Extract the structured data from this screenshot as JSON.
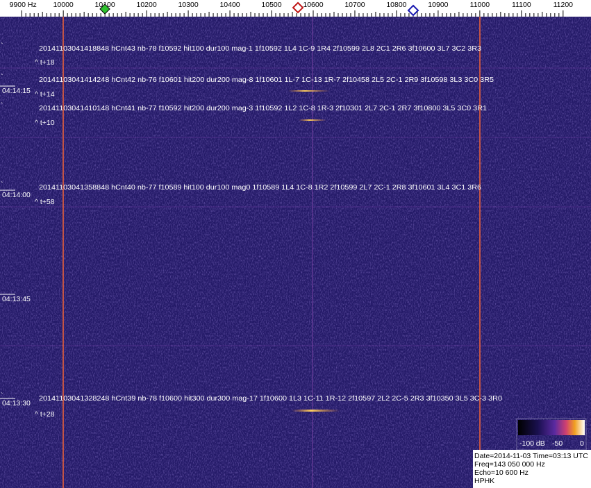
{
  "frequency_axis": {
    "xlim": [
      9848,
      11267
    ],
    "ticks": [
      {
        "value": 9900,
        "label": "9900 Hz"
      },
      10000,
      10100,
      10200,
      10300,
      10400,
      10500,
      10600,
      10700,
      10800,
      10900,
      11000,
      11100,
      11200
    ]
  },
  "time_labels": [
    "04:14:15",
    "04:14:00",
    "04:13:45",
    "04:13:30"
  ],
  "detections": [
    {
      "text": "20141103041418848 hCnt43 nb-78 f10592 hit100 dur100 mag-1 1f10592 1L4 1C-9 1R4 2f10599 2L8 2C1 2R6 3f10600 3L7 3C2 3R3",
      "offset": "^ t+18"
    },
    {
      "text": "20141103041414248 hCnt42 nb-76 f10601 hit200 dur200 mag-8 1f10601 1L-7 1C-13 1R-7 2f10458 2L5 2C-1 2R9 3f10598 3L3 3C0 3R5",
      "offset": "^ t+14"
    },
    {
      "text": "20141103041410148 hCnt41 nb-77 f10592 hit200 dur200 mag-3 1f10592 1L2 1C-8 1R-3 2f10301 2L7 2C-1 2R7 3f10800 3L5 3C0 3R1",
      "offset": "^ t+10"
    },
    {
      "text": "20141103041358848 hCnt40 nb-77 f10589 hit100 dur100 mag0 1f10589 1L4 1C-8 1R2 2f10599 2L7 2C-1 2R8 3f10601 3L4 3C1 3R6",
      "offset": "^ t+58"
    },
    {
      "text": "20141103041328248 hCnt39 nb-78 f10600 hit300 dur300 mag-17 1f10600 1L3 1C-11 1R-12 2f10597 2L2 2C-5 2R3 3f10350 3L5 3C-3 3R0",
      "offset": "^ t+28"
    }
  ],
  "colorbar": {
    "labels": [
      "-100 dB",
      "-50",
      "0"
    ]
  },
  "info": [
    "Date=2014-11-03 Time=03:13 UTC",
    "Freq=143 050 000 Hz",
    "Echo=10 600 Hz",
    "HPHK"
  ]
}
